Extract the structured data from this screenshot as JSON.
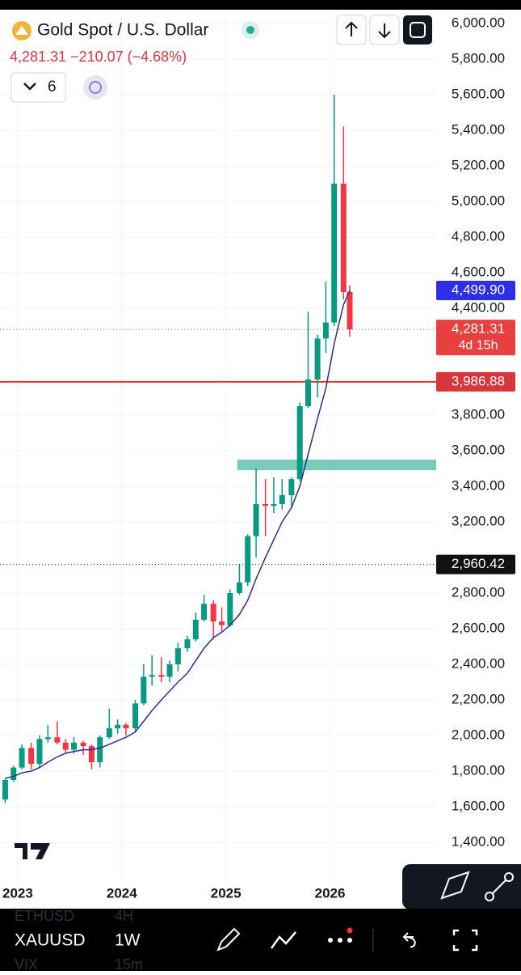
{
  "header": {
    "title": "Gold Spot / U.S. Dollar",
    "quote": "4,281.31 −210.07 (−4.68%)",
    "indicator_count": "6"
  },
  "toolbar": {
    "symbol": "XAUUSD",
    "interval": "1W",
    "above_symbol": "ETHUSD",
    "above_interval": "4H",
    "below_symbol": "VIX",
    "below_interval": "15m"
  },
  "chart_data": {
    "type": "candlestick",
    "x": [
      2022.88,
      2022.96,
      2023.04,
      2023.13,
      2023.21,
      2023.29,
      2023.38,
      2023.46,
      2023.54,
      2023.63,
      2023.71,
      2023.79,
      2023.88,
      2023.96,
      2024.04,
      2024.13,
      2024.21,
      2024.29,
      2024.38,
      2024.46,
      2024.54,
      2024.63,
      2024.71,
      2024.79,
      2024.88,
      2024.96,
      2025.04,
      2025.13,
      2025.21,
      2025.29,
      2025.38,
      2025.46,
      2025.54,
      2025.63,
      2025.71,
      2025.79,
      2025.88,
      2025.96,
      2026.04,
      2026.13,
      2026.19
    ],
    "open": [
      1640,
      1750,
      1820,
      1930,
      1840,
      1980,
      1990,
      1960,
      1920,
      1960,
      1940,
      1850,
      1990,
      2040,
      2060,
      2040,
      2180,
      2330,
      2340,
      2330,
      2400,
      2490,
      2540,
      2650,
      2740,
      2640,
      2620,
      2800,
      2860,
      3120,
      3300,
      3290,
      3300,
      3350,
      3440,
      3850,
      4000,
      4230,
      4320,
      5100,
      4491
    ],
    "high": [
      1760,
      1830,
      1950,
      1960,
      2000,
      2060,
      2080,
      1980,
      1990,
      1970,
      1950,
      2000,
      2150,
      2090,
      2070,
      2200,
      2400,
      2450,
      2440,
      2420,
      2520,
      2560,
      2690,
      2790,
      2760,
      2720,
      2820,
      2960,
      3130,
      3500,
      3440,
      3450,
      3440,
      3450,
      3870,
      4380,
      4250,
      4550,
      5600,
      5420,
      4530
    ],
    "low": [
      1620,
      1740,
      1810,
      1810,
      1820,
      1960,
      1950,
      1900,
      1900,
      1890,
      1810,
      1820,
      1980,
      2010,
      2000,
      2020,
      2170,
      2280,
      2300,
      2300,
      2360,
      2470,
      2530,
      2640,
      2540,
      2580,
      2610,
      2790,
      2840,
      3000,
      3120,
      3250,
      3270,
      3280,
      3430,
      3840,
      3900,
      4150,
      4300,
      4450,
      4240
    ],
    "close": [
      1750,
      1820,
      1930,
      1840,
      1980,
      1990,
      1960,
      1920,
      1960,
      1940,
      1850,
      1990,
      2040,
      2060,
      2040,
      2180,
      2330,
      2340,
      2330,
      2400,
      2490,
      2540,
      2650,
      2740,
      2640,
      2620,
      2800,
      2860,
      3120,
      3300,
      3290,
      3300,
      3350,
      3440,
      3850,
      4000,
      4230,
      4320,
      5100,
      4491,
      4281.31
    ],
    "up_color": "#089981",
    "down_color": "#f23645",
    "ma_values": [
      1760,
      1770,
      1790,
      1800,
      1820,
      1850,
      1880,
      1900,
      1910,
      1920,
      1920,
      1930,
      1950,
      1970,
      1990,
      2020,
      2080,
      2140,
      2200,
      2250,
      2300,
      2350,
      2420,
      2490,
      2550,
      2580,
      2620,
      2680,
      2760,
      2880,
      3000,
      3100,
      3200,
      3280,
      3400,
      3580,
      3780,
      3950,
      4200,
      4420,
      4499.9
    ],
    "ma_color": "#2b2d8f",
    "xlim": [
      2022.83,
      2027.02
    ],
    "xticks": [
      2023,
      2024,
      2025,
      2026
    ],
    "ylim": [
      1200,
      6077
    ],
    "yticks": [
      {
        "value": 6000,
        "label": "6,000.00"
      },
      {
        "value": 5800,
        "label": "5,800.00"
      },
      {
        "value": 5600,
        "label": "5,600.00"
      },
      {
        "value": 5400,
        "label": "5,400.00"
      },
      {
        "value": 5200,
        "label": "5,200.00"
      },
      {
        "value": 5000,
        "label": "5,000.00"
      },
      {
        "value": 4800,
        "label": "4,800.00"
      },
      {
        "value": 4600,
        "label": "4,600.00"
      },
      {
        "value": 4400,
        "label": "4,400.00"
      },
      {
        "value": 3800,
        "label": "3,800.00"
      },
      {
        "value": 3600,
        "label": "3,600.00"
      },
      {
        "value": 3400,
        "label": "3,400.00"
      },
      {
        "value": 3200,
        "label": "3,200.00"
      },
      {
        "value": 2800,
        "label": "2,800.00"
      },
      {
        "value": 2600,
        "label": "2,600.00"
      },
      {
        "value": 2400,
        "label": "2,400.00"
      },
      {
        "value": 2200,
        "label": "2,200.00"
      },
      {
        "value": 2000,
        "label": "2,000.00"
      },
      {
        "value": 1800,
        "label": "1,800.00"
      },
      {
        "value": 1600,
        "label": "1,600.00"
      },
      {
        "value": 1400,
        "label": "1,400.00"
      }
    ],
    "grid": true,
    "zone": {
      "values": [
        3490,
        3550
      ],
      "start": 2025.0,
      "color": "#6cc5b0"
    },
    "levels": [
      {
        "value": 4499.9,
        "label": "4,499.90",
        "color": "#2e2ee6",
        "line": "none"
      },
      {
        "value": 4281.31,
        "label": "4,281.31",
        "timer": "4d 15h",
        "color": "#e8403f",
        "line": "dotted"
      },
      {
        "value": 3986.88,
        "label": "3,986.88",
        "color": "#d8363d",
        "line": "solid"
      },
      {
        "value": 2960.42,
        "label": "2,960.42",
        "color": "#111111",
        "line": "dotted"
      }
    ]
  }
}
